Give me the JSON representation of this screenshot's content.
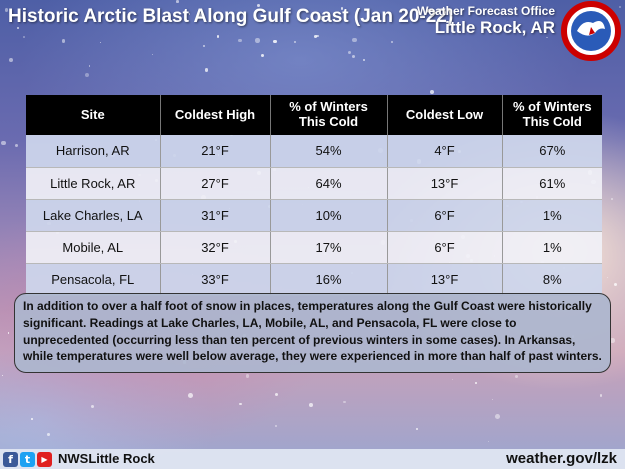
{
  "header": {
    "title": "Historic Arctic Blast Along Gulf Coast (Jan 20-22)",
    "office_line1": "Weather Forecast Office",
    "office_line2": "Little Rock, AR"
  },
  "table": {
    "columns": [
      "Site",
      "Coldest High",
      "% of Winters\nThis Cold",
      "Coldest Low",
      "% of Winters\nThis Cold"
    ],
    "rows": [
      [
        "Harrison, AR",
        "21°F",
        "54%",
        "4°F",
        "67%"
      ],
      [
        "Little Rock, AR",
        "27°F",
        "64%",
        "13°F",
        "61%"
      ],
      [
        "Lake Charles, LA",
        "31°F",
        "10%",
        "6°F",
        "1%"
      ],
      [
        "Mobile, AL",
        "32°F",
        "17%",
        "6°F",
        "1%"
      ],
      [
        "Pensacola, FL",
        "33°F",
        "16%",
        "13°F",
        "8%"
      ]
    ]
  },
  "note": "In addition to over a half foot of snow in places, temperatures along the Gulf Coast were historically significant. Readings at Lake Charles, LA, Mobile, AL, and Pensacola, FL were close to unprecedented (occurring less than ten percent of previous winters in some cases). In Arkansas, while temperatures were well below average, they were experienced in more than half of past winters.",
  "footer": {
    "social_icons": [
      "facebook-icon",
      "twitter-icon",
      "youtube-icon"
    ],
    "handle": "NWSLittle Rock",
    "website": "weather.gov/lzk"
  },
  "colors": {
    "header_bg": "#000000",
    "row_odd": "#cdd6ec",
    "row_even": "#f0f0f6",
    "note_bg": "#acb6ce"
  }
}
